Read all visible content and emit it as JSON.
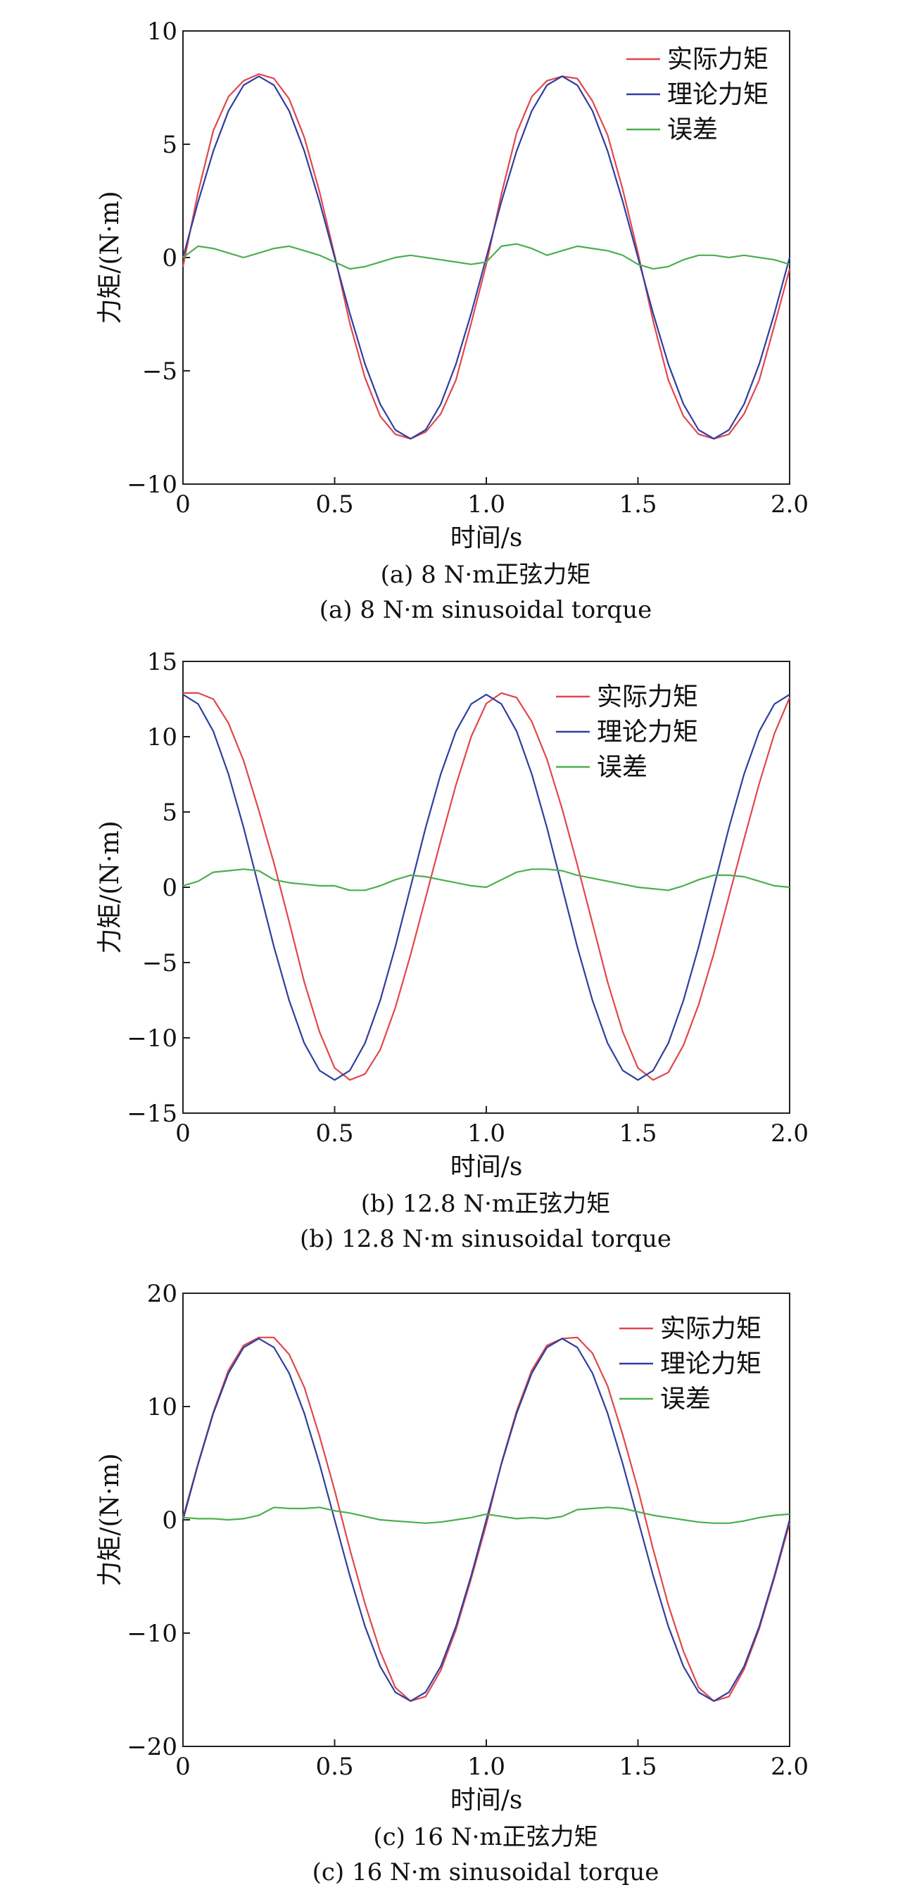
{
  "chart_data": [
    {
      "type": "line",
      "caption_cn": "(a) 8 N·m正弦力矩",
      "caption_en": "(a) 8 N·m sinusoidal torque",
      "xlabel": "时间/s",
      "ylabel": "力矩/(N·m)",
      "xlim": [
        0,
        2.0
      ],
      "ylim": [
        -10,
        10
      ],
      "xticks": [
        "0",
        "0.5",
        "1.0",
        "1.5",
        "2.0"
      ],
      "yticks": [
        "10",
        "5",
        "0",
        "−5",
        "−10"
      ],
      "legend_position": "top-right",
      "grid": false,
      "series": [
        {
          "name": "实际力矩",
          "color": "#e0474c",
          "x": [
            0,
            0.05,
            0.1,
            0.15,
            0.2,
            0.25,
            0.3,
            0.35,
            0.4,
            0.45,
            0.5,
            0.55,
            0.6,
            0.65,
            0.7,
            0.75,
            0.8,
            0.85,
            0.9,
            0.95,
            1.0,
            1.05,
            1.1,
            1.15,
            1.2,
            1.25,
            1.3,
            1.35,
            1.4,
            1.45,
            1.5,
            1.55,
            1.6,
            1.65,
            1.7,
            1.75,
            1.8,
            1.85,
            1.9,
            1.95,
            2.0
          ],
          "y": [
            -0.4,
            2.9,
            5.6,
            7.1,
            7.8,
            8.1,
            7.9,
            7.0,
            5.3,
            2.9,
            0.1,
            -2.9,
            -5.3,
            -7.0,
            -7.8,
            -8.0,
            -7.7,
            -6.9,
            -5.4,
            -2.9,
            -0.3,
            2.8,
            5.5,
            7.1,
            7.8,
            8.0,
            7.9,
            6.9,
            5.4,
            3.0,
            0.2,
            -2.8,
            -5.4,
            -7.0,
            -7.8,
            -8.0,
            -7.8,
            -6.9,
            -5.4,
            -3.0,
            -0.5
          ]
        },
        {
          "name": "理论力矩",
          "color": "#2f3f9e",
          "x": [
            0,
            0.05,
            0.1,
            0.15,
            0.2,
            0.25,
            0.3,
            0.35,
            0.4,
            0.45,
            0.5,
            0.55,
            0.6,
            0.65,
            0.7,
            0.75,
            0.8,
            0.85,
            0.9,
            0.95,
            1.0,
            1.05,
            1.1,
            1.15,
            1.2,
            1.25,
            1.3,
            1.35,
            1.4,
            1.45,
            1.5,
            1.55,
            1.6,
            1.65,
            1.7,
            1.75,
            1.8,
            1.85,
            1.9,
            1.95,
            2.0
          ],
          "y": [
            0,
            2.47,
            4.7,
            6.47,
            7.61,
            8.0,
            7.61,
            6.47,
            4.7,
            2.47,
            0,
            -2.47,
            -4.7,
            -6.47,
            -7.61,
            -8.0,
            -7.61,
            -6.47,
            -4.7,
            -2.47,
            0,
            2.47,
            4.7,
            6.47,
            7.61,
            8.0,
            7.61,
            6.47,
            4.7,
            2.47,
            0,
            -2.47,
            -4.7,
            -6.47,
            -7.61,
            -8.0,
            -7.61,
            -6.47,
            -4.7,
            -2.47,
            0
          ]
        },
        {
          "name": "误差",
          "color": "#4caf50",
          "x": [
            0,
            0.05,
            0.1,
            0.15,
            0.2,
            0.25,
            0.3,
            0.35,
            0.4,
            0.45,
            0.5,
            0.55,
            0.6,
            0.65,
            0.7,
            0.75,
            0.8,
            0.85,
            0.9,
            0.95,
            1.0,
            1.05,
            1.1,
            1.15,
            1.2,
            1.25,
            1.3,
            1.35,
            1.4,
            1.45,
            1.5,
            1.55,
            1.6,
            1.65,
            1.7,
            1.75,
            1.8,
            1.85,
            1.9,
            1.95,
            2.0
          ],
          "y": [
            0.0,
            0.5,
            0.4,
            0.2,
            0.0,
            0.2,
            0.4,
            0.5,
            0.3,
            0.1,
            -0.2,
            -0.5,
            -0.4,
            -0.2,
            0.0,
            0.1,
            0.0,
            -0.1,
            -0.2,
            -0.3,
            -0.2,
            0.5,
            0.6,
            0.4,
            0.1,
            0.3,
            0.5,
            0.4,
            0.3,
            0.1,
            -0.3,
            -0.5,
            -0.4,
            -0.1,
            0.1,
            0.1,
            0.0,
            0.1,
            0.0,
            -0.1,
            -0.3
          ]
        }
      ]
    },
    {
      "type": "line",
      "caption_cn": "(b) 12.8 N·m正弦力矩",
      "caption_en": "(b) 12.8 N·m sinusoidal torque",
      "xlabel": "时间/s",
      "ylabel": "力矩/(N·m)",
      "xlim": [
        0,
        2.0
      ],
      "ylim": [
        -15,
        15
      ],
      "xticks": [
        "0",
        "0.5",
        "1.0",
        "1.5",
        "2.0"
      ],
      "yticks": [
        "15",
        "10",
        "5",
        "0",
        "−5",
        "−10",
        "−15"
      ],
      "legend_position": "top-right",
      "grid": false,
      "series": [
        {
          "name": "实际力矩",
          "color": "#e0474c",
          "x": [
            0,
            0.05,
            0.1,
            0.15,
            0.2,
            0.25,
            0.3,
            0.35,
            0.4,
            0.45,
            0.5,
            0.55,
            0.6,
            0.65,
            0.7,
            0.75,
            0.8,
            0.85,
            0.9,
            0.95,
            1.0,
            1.05,
            1.1,
            1.15,
            1.2,
            1.25,
            1.3,
            1.35,
            1.4,
            1.45,
            1.5,
            1.55,
            1.6,
            1.65,
            1.7,
            1.75,
            1.8,
            1.85,
            1.9,
            1.95,
            2.0
          ],
          "y": [
            12.9,
            12.9,
            12.5,
            10.9,
            8.4,
            5.1,
            1.6,
            -2.3,
            -6.3,
            -9.6,
            -12.0,
            -12.8,
            -12.4,
            -10.8,
            -8.0,
            -4.5,
            -0.7,
            3.1,
            6.8,
            10.0,
            12.2,
            12.9,
            12.6,
            11.0,
            8.5,
            5.2,
            1.5,
            -2.4,
            -6.3,
            -9.6,
            -12.0,
            -12.8,
            -12.3,
            -10.5,
            -7.8,
            -4.4,
            -0.6,
            3.2,
            6.9,
            10.2,
            12.6
          ]
        },
        {
          "name": "理论力矩",
          "color": "#2f3f9e",
          "x": [
            0,
            0.05,
            0.1,
            0.15,
            0.2,
            0.25,
            0.3,
            0.35,
            0.4,
            0.45,
            0.5,
            0.55,
            0.6,
            0.65,
            0.7,
            0.75,
            0.8,
            0.85,
            0.9,
            0.95,
            1.0,
            1.05,
            1.1,
            1.15,
            1.2,
            1.25,
            1.3,
            1.35,
            1.4,
            1.45,
            1.5,
            1.55,
            1.6,
            1.65,
            1.7,
            1.75,
            1.8,
            1.85,
            1.9,
            1.95,
            2.0
          ],
          "y": [
            12.8,
            12.17,
            10.36,
            7.52,
            3.96,
            0,
            -3.96,
            -7.52,
            -10.36,
            -12.17,
            -12.8,
            -12.17,
            -10.36,
            -7.52,
            -3.96,
            0,
            3.96,
            7.52,
            10.36,
            12.17,
            12.8,
            12.17,
            10.36,
            7.52,
            3.96,
            0,
            -3.96,
            -7.52,
            -10.36,
            -12.17,
            -12.8,
            -12.17,
            -10.36,
            -7.52,
            -3.96,
            0,
            3.96,
            7.52,
            10.36,
            12.17,
            12.8
          ]
        },
        {
          "name": "误差",
          "color": "#4caf50",
          "x": [
            0,
            0.05,
            0.1,
            0.15,
            0.2,
            0.25,
            0.3,
            0.35,
            0.4,
            0.45,
            0.5,
            0.55,
            0.6,
            0.65,
            0.7,
            0.75,
            0.8,
            0.85,
            0.9,
            0.95,
            1.0,
            1.05,
            1.1,
            1.15,
            1.2,
            1.25,
            1.3,
            1.35,
            1.4,
            1.45,
            1.5,
            1.55,
            1.6,
            1.65,
            1.7,
            1.75,
            1.8,
            1.85,
            1.9,
            1.95,
            2.0
          ],
          "y": [
            0.1,
            0.4,
            1.0,
            1.1,
            1.2,
            1.1,
            0.5,
            0.3,
            0.2,
            0.1,
            0.1,
            -0.2,
            -0.2,
            0.1,
            0.5,
            0.8,
            0.7,
            0.5,
            0.3,
            0.1,
            0.0,
            0.5,
            1.0,
            1.2,
            1.2,
            1.1,
            0.8,
            0.6,
            0.4,
            0.2,
            0.0,
            -0.1,
            -0.2,
            0.1,
            0.5,
            0.8,
            0.8,
            0.7,
            0.4,
            0.1,
            0.0
          ]
        }
      ]
    },
    {
      "type": "line",
      "caption_cn": "(c) 16 N·m正弦力矩",
      "caption_en": "(c) 16 N·m sinusoidal torque",
      "xlabel": "时间/s",
      "ylabel": "力矩/(N·m)",
      "xlim": [
        0,
        2.0
      ],
      "ylim": [
        -20,
        20
      ],
      "xticks": [
        "0",
        "0.5",
        "1.0",
        "1.5",
        "2.0"
      ],
      "yticks": [
        "20",
        "10",
        "0",
        "−10",
        "−20"
      ],
      "legend_position": "top-right",
      "grid": false,
      "series": [
        {
          "name": "实际力矩",
          "color": "#e0474c",
          "x": [
            0,
            0.05,
            0.1,
            0.15,
            0.2,
            0.25,
            0.3,
            0.35,
            0.4,
            0.45,
            0.5,
            0.55,
            0.6,
            0.65,
            0.7,
            0.75,
            0.8,
            0.85,
            0.9,
            0.95,
            1.0,
            1.05,
            1.1,
            1.15,
            1.2,
            1.25,
            1.3,
            1.35,
            1.4,
            1.45,
            1.5,
            1.55,
            1.6,
            1.65,
            1.7,
            1.75,
            1.8,
            1.85,
            1.9,
            1.95,
            2.0
          ],
          "y": [
            0.2,
            5.0,
            9.5,
            13.2,
            15.4,
            16.1,
            16.1,
            14.6,
            11.7,
            7.4,
            2.6,
            -2.6,
            -7.4,
            -11.6,
            -14.8,
            -16.0,
            -15.6,
            -13.3,
            -9.7,
            -5.2,
            -0.4,
            5.0,
            9.6,
            13.2,
            15.4,
            16.0,
            16.1,
            14.7,
            11.8,
            7.5,
            2.7,
            -2.6,
            -7.5,
            -11.6,
            -14.8,
            -16.0,
            -15.6,
            -13.2,
            -9.6,
            -5.1,
            -0.3
          ]
        },
        {
          "name": "理论力矩",
          "color": "#2f3f9e",
          "x": [
            0,
            0.05,
            0.1,
            0.15,
            0.2,
            0.25,
            0.3,
            0.35,
            0.4,
            0.45,
            0.5,
            0.55,
            0.6,
            0.65,
            0.7,
            0.75,
            0.8,
            0.85,
            0.9,
            0.95,
            1.0,
            1.05,
            1.1,
            1.15,
            1.2,
            1.25,
            1.3,
            1.35,
            1.4,
            1.45,
            1.5,
            1.55,
            1.6,
            1.65,
            1.7,
            1.75,
            1.8,
            1.85,
            1.9,
            1.95,
            2.0
          ],
          "y": [
            0,
            4.94,
            9.4,
            12.94,
            15.22,
            16.0,
            15.22,
            12.94,
            9.4,
            4.94,
            0,
            -4.94,
            -9.4,
            -12.94,
            -15.22,
            -16.0,
            -15.22,
            -12.94,
            -9.4,
            -4.94,
            0,
            4.94,
            9.4,
            12.94,
            15.22,
            16.0,
            15.22,
            12.94,
            9.4,
            4.94,
            0,
            -4.94,
            -9.4,
            -12.94,
            -15.22,
            -16.0,
            -15.22,
            -12.94,
            -9.4,
            -4.94,
            0
          ]
        },
        {
          "name": "误差",
          "color": "#4caf50",
          "x": [
            0,
            0.05,
            0.1,
            0.15,
            0.2,
            0.25,
            0.3,
            0.35,
            0.4,
            0.45,
            0.5,
            0.55,
            0.6,
            0.65,
            0.7,
            0.75,
            0.8,
            0.85,
            0.9,
            0.95,
            1.0,
            1.05,
            1.1,
            1.15,
            1.2,
            1.25,
            1.3,
            1.35,
            1.4,
            1.45,
            1.5,
            1.55,
            1.6,
            1.65,
            1.7,
            1.75,
            1.8,
            1.85,
            1.9,
            1.95,
            2.0
          ],
          "y": [
            0.2,
            0.1,
            0.1,
            0.0,
            0.1,
            0.4,
            1.1,
            1.0,
            1.0,
            1.1,
            0.8,
            0.6,
            0.3,
            0.0,
            -0.1,
            -0.2,
            -0.3,
            -0.2,
            0.0,
            0.2,
            0.5,
            0.3,
            0.1,
            0.2,
            0.1,
            0.3,
            0.9,
            1.0,
            1.1,
            1.0,
            0.7,
            0.4,
            0.2,
            0.0,
            -0.2,
            -0.3,
            -0.3,
            -0.1,
            0.2,
            0.4,
            0.5
          ]
        }
      ]
    }
  ]
}
